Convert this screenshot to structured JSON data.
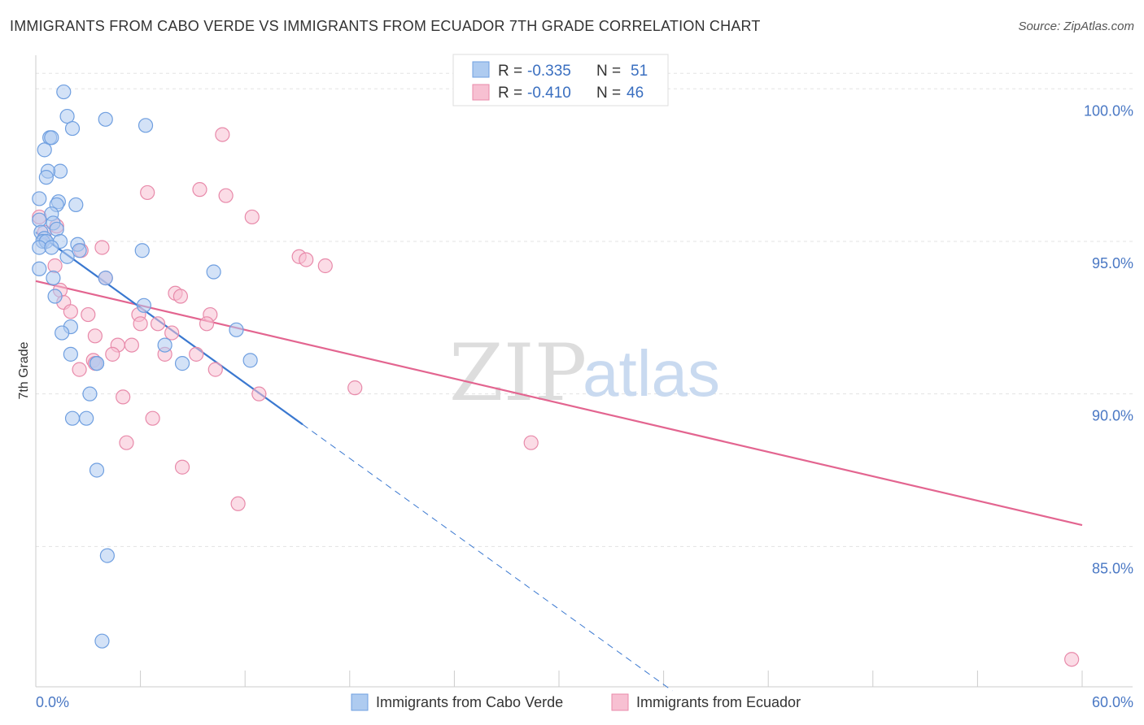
{
  "title": "IMMIGRANTS FROM CABO VERDE VS IMMIGRANTS FROM ECUADOR 7TH GRADE CORRELATION CHART",
  "source": "Source: ZipAtlas.com",
  "watermark": {
    "zip": "ZIP",
    "atlas": "atlas"
  },
  "legend": {
    "series1": {
      "r_label": "R =",
      "r_value": "-0.335",
      "n_label": "N =",
      "n_value": "51"
    },
    "series2": {
      "r_label": "R =",
      "r_value": "-0.410",
      "n_label": "N =",
      "n_value": "46"
    }
  },
  "colors": {
    "blue_fill": "#aecbf0",
    "blue_stroke": "#6f9fe0",
    "blue_line": "#3a78d0",
    "pink_fill": "#f7c0d2",
    "pink_stroke": "#e88aaa",
    "pink_line": "#e36590",
    "grid": "#e3e3e3"
  },
  "chart_data": {
    "type": "scatter",
    "title": "IMMIGRANTS FROM CABO VERDE VS IMMIGRANTS FROM ECUADOR 7TH GRADE CORRELATION CHART",
    "xlabel": "",
    "ylabel": "7th Grade",
    "xlim": [
      0,
      60
    ],
    "ylim": [
      80.4,
      101.1
    ],
    "x_tick_labels": [
      "0.0%",
      "60.0%"
    ],
    "y_ticks": [
      85,
      90,
      95,
      100
    ],
    "y_tick_labels": [
      "85.0%",
      "90.0%",
      "95.0%",
      "100.0%"
    ],
    "series": [
      {
        "name": "Immigrants from Cabo Verde",
        "r": -0.335,
        "n": 51,
        "trend": {
          "x0": 0.0,
          "y0": 95.3,
          "x1": 15.3,
          "y1": 89.0,
          "dash_x_end": 36.5
        },
        "points": [
          [
            1.6,
            99.9
          ],
          [
            1.8,
            99.1
          ],
          [
            4.0,
            99.0
          ],
          [
            6.3,
            98.8
          ],
          [
            2.1,
            98.7
          ],
          [
            0.8,
            98.4
          ],
          [
            0.9,
            98.4
          ],
          [
            0.5,
            98.0
          ],
          [
            1.4,
            97.3
          ],
          [
            0.7,
            97.3
          ],
          [
            0.6,
            97.1
          ],
          [
            0.2,
            96.4
          ],
          [
            1.3,
            96.3
          ],
          [
            1.2,
            96.2
          ],
          [
            2.3,
            96.2
          ],
          [
            0.9,
            95.9
          ],
          [
            0.2,
            95.7
          ],
          [
            1.0,
            95.6
          ],
          [
            1.2,
            95.4
          ],
          [
            0.3,
            95.3
          ],
          [
            0.5,
            95.1
          ],
          [
            0.4,
            95.0
          ],
          [
            0.6,
            95.0
          ],
          [
            1.4,
            95.0
          ],
          [
            2.4,
            94.9
          ],
          [
            0.2,
            94.8
          ],
          [
            0.9,
            94.8
          ],
          [
            6.1,
            94.7
          ],
          [
            2.5,
            94.7
          ],
          [
            1.8,
            94.5
          ],
          [
            0.2,
            94.1
          ],
          [
            10.2,
            94.0
          ],
          [
            1.0,
            93.8
          ],
          [
            4.0,
            93.8
          ],
          [
            1.1,
            93.2
          ],
          [
            6.2,
            92.9
          ],
          [
            2.0,
            92.2
          ],
          [
            11.5,
            92.1
          ],
          [
            1.5,
            92.0
          ],
          [
            7.4,
            91.6
          ],
          [
            2.0,
            91.3
          ],
          [
            12.3,
            91.1
          ],
          [
            8.4,
            91.0
          ],
          [
            3.5,
            91.0
          ],
          [
            3.5,
            91.0
          ],
          [
            3.1,
            90.0
          ],
          [
            2.1,
            89.2
          ],
          [
            2.9,
            89.2
          ],
          [
            3.5,
            87.5
          ],
          [
            4.1,
            84.7
          ],
          [
            3.8,
            81.9
          ]
        ]
      },
      {
        "name": "Immigrants from Ecuador",
        "r": -0.41,
        "n": 46,
        "trend": {
          "x0": 0.0,
          "y0": 93.7,
          "x1": 60.0,
          "y1": 85.7
        },
        "points": [
          [
            10.7,
            98.5
          ],
          [
            9.4,
            96.7
          ],
          [
            6.4,
            96.6
          ],
          [
            10.9,
            96.5
          ],
          [
            12.4,
            95.8
          ],
          [
            0.2,
            95.8
          ],
          [
            1.2,
            95.5
          ],
          [
            0.5,
            95.3
          ],
          [
            3.8,
            94.8
          ],
          [
            2.6,
            94.7
          ],
          [
            15.1,
            94.5
          ],
          [
            15.5,
            94.4
          ],
          [
            16.6,
            94.2
          ],
          [
            1.1,
            94.2
          ],
          [
            4.0,
            93.8
          ],
          [
            1.4,
            93.4
          ],
          [
            8.0,
            93.3
          ],
          [
            8.3,
            93.2
          ],
          [
            1.6,
            93.0
          ],
          [
            2.0,
            92.7
          ],
          [
            5.9,
            92.6
          ],
          [
            3.0,
            92.6
          ],
          [
            10.0,
            92.6
          ],
          [
            7.0,
            92.3
          ],
          [
            9.8,
            92.3
          ],
          [
            6.0,
            92.3
          ],
          [
            7.8,
            92.0
          ],
          [
            3.4,
            91.9
          ],
          [
            4.7,
            91.6
          ],
          [
            5.5,
            91.6
          ],
          [
            7.4,
            91.3
          ],
          [
            9.2,
            91.3
          ],
          [
            4.4,
            91.3
          ],
          [
            3.3,
            91.1
          ],
          [
            3.4,
            91.0
          ],
          [
            2.5,
            90.8
          ],
          [
            10.3,
            90.8
          ],
          [
            18.3,
            90.2
          ],
          [
            12.8,
            90.0
          ],
          [
            5.0,
            89.9
          ],
          [
            6.7,
            89.2
          ],
          [
            28.4,
            88.4
          ],
          [
            5.2,
            88.4
          ],
          [
            8.4,
            87.6
          ],
          [
            11.6,
            86.4
          ],
          [
            59.4,
            81.3
          ]
        ]
      }
    ]
  }
}
